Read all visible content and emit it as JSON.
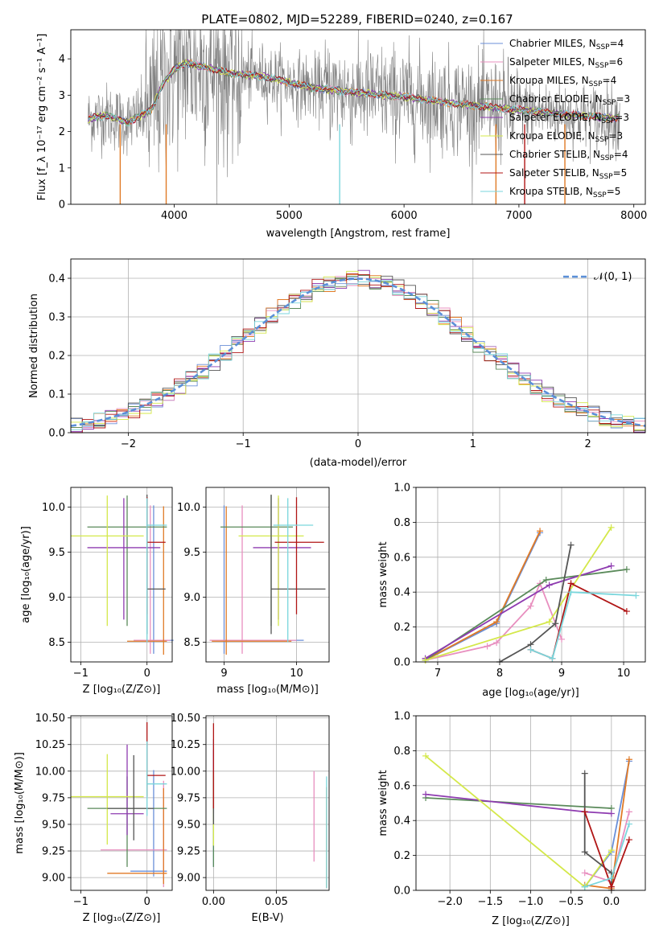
{
  "figure_title": "PLATE=0802, MJD=52289, FIBERID=0240, z=0.167",
  "colors": {
    "chabrier_miles": "#6a8fd8",
    "salpeter_miles": "#e88fbf",
    "kroupa_miles": "#e07a26",
    "chabrier_elodie": "#5a8a5a",
    "salpeter_elodie": "#8e3bb0",
    "kroupa_elodie": "#d4e84a",
    "chabrier_stelib": "#555555",
    "salpeter_stelib": "#b01515",
    "kroupa_stelib": "#7ad6dc",
    "data": "#808080",
    "grid": "#b0b0b0"
  },
  "chart_data": [
    {
      "id": "spectrum",
      "type": "line",
      "xlabel": "wavelength [Angstrom, rest frame]",
      "ylabel": "Flux [f_λ 10⁻¹⁷ erg cm⁻² s⁻¹ A⁻¹]",
      "xlim": [
        3100,
        8100
      ],
      "ylim": [
        0,
        4.8
      ],
      "xticks": [
        "4000",
        "5000",
        "6000",
        "7000",
        "8000"
      ],
      "yticks": [
        "0",
        "1",
        "2",
        "3",
        "4"
      ],
      "grid": false,
      "legend_position": "upper-right",
      "legend": [
        {
          "label": "Chabrier MILES, N",
          "sub": "SSP",
          "value": "=4"
        },
        {
          "label": "Salpeter MILES, N",
          "sub": "SSP",
          "value": "=6"
        },
        {
          "label": "Kroupa MILES, N",
          "sub": "SSP",
          "value": "=4"
        },
        {
          "label": "Chabrier ELODIE, N",
          "sub": "SSP",
          "value": "=3"
        },
        {
          "label": "Salpeter ELODIE, N",
          "sub": "SSP",
          "value": "=3"
        },
        {
          "label": "Kroupa ELODIE, N",
          "sub": "SSP",
          "value": "=3"
        },
        {
          "label": "Chabrier STELIB, N",
          "sub": "SSP",
          "value": "=4"
        },
        {
          "label": "Salpeter STELIB, N",
          "sub": "SSP",
          "value": "=5"
        },
        {
          "label": "Kroupa STELIB, N",
          "sub": "SSP",
          "value": "=5"
        }
      ],
      "model_continuum": {
        "x": [
          3250,
          3400,
          3600,
          3800,
          3900,
          4000,
          4100,
          4300,
          4500,
          4800,
          5000,
          5200,
          5500,
          6000,
          6500,
          7000,
          7500,
          7900
        ],
        "y": [
          2.35,
          2.45,
          2.25,
          2.6,
          3.3,
          3.7,
          3.9,
          3.75,
          3.6,
          3.5,
          3.35,
          3.2,
          3.1,
          2.95,
          2.75,
          2.6,
          2.45,
          2.35
        ]
      }
    },
    {
      "id": "residuals",
      "type": "histogram",
      "xlabel": "(data-model)/error",
      "ylabel": "Normed distribution",
      "xlim": [
        -2.5,
        2.5
      ],
      "ylim": [
        0,
        0.45
      ],
      "xticks": [
        "−2",
        "−1",
        "0",
        "1",
        "2"
      ],
      "yticks": [
        "0.0",
        "0.1",
        "0.2",
        "0.3",
        "0.4"
      ],
      "grid": true,
      "legend_position": "upper-right",
      "legend_label": "𝒩(0, 1)",
      "bin_width": 0.1
    },
    {
      "id": "age_vs_Z",
      "type": "errorbar",
      "xlabel": "Z [log₁₀(Z/Z⊙)]",
      "ylabel": "age  [log₁₀(age/yr)]",
      "xlim": [
        -1.15,
        0.38
      ],
      "ylim": [
        8.28,
        10.22
      ],
      "xticks": [
        "−1",
        "0"
      ],
      "xtick_values": [
        -1,
        0
      ],
      "yticks": [
        "8.5",
        "9.0",
        "9.5",
        "10.0"
      ],
      "ytick_values": [
        8.5,
        9.0,
        9.5,
        10.0
      ],
      "grid": true,
      "points": [
        {
          "model": "chabrier_miles",
          "x": 0.1,
          "xerr": [
            0.3,
            0.3
          ],
          "y": 8.52,
          "yerr": [
            0.15,
            1.5
          ]
        },
        {
          "model": "salpeter_miles",
          "x": 0.05,
          "xerr": [
            0.25,
            0.3
          ],
          "y": 8.52,
          "yerr": [
            0.15,
            1.5
          ]
        },
        {
          "model": "kroupa_miles",
          "x": 0.25,
          "xerr": [
            0.55,
            0.05
          ],
          "y": 8.51,
          "yerr": [
            0.15,
            1.5
          ]
        },
        {
          "model": "chabrier_elodie",
          "x": -0.3,
          "xerr": [
            0.6,
            0.6
          ],
          "y": 9.78,
          "yerr": [
            1.1,
            0.35
          ]
        },
        {
          "model": "salpeter_elodie",
          "x": -0.35,
          "xerr": [
            0.55,
            0.55
          ],
          "y": 9.55,
          "yerr": [
            0.8,
            0.55
          ]
        },
        {
          "model": "kroupa_elodie",
          "x": -0.6,
          "xerr": [
            0.55,
            0.55
          ],
          "y": 9.68,
          "yerr": [
            1.0,
            0.45
          ]
        },
        {
          "model": "chabrier_stelib",
          "x": 0.0,
          "xerr": [
            0.0,
            0.28
          ],
          "y": 9.09,
          "yerr": [
            0.5,
            1.05
          ]
        },
        {
          "model": "salpeter_stelib",
          "x": 0.0,
          "xerr": [
            0.0,
            0.28
          ],
          "y": 9.61,
          "yerr": [
            0.8,
            0.5
          ]
        },
        {
          "model": "kroupa_stelib",
          "x": 0.0,
          "xerr": [
            0.0,
            0.3
          ],
          "y": 9.8,
          "yerr": [
            1.3,
            0.3
          ]
        }
      ]
    },
    {
      "id": "age_vs_mass",
      "type": "errorbar",
      "xlabel": "mass [log₁₀(M/M⊙)]",
      "ylabel": "",
      "xlim": [
        8.75,
        10.45
      ],
      "ylim": [
        8.28,
        10.22
      ],
      "xticks": [
        "9",
        "10"
      ],
      "xtick_values": [
        9,
        10
      ],
      "yticks": [
        "8.5",
        "9.0",
        "9.5",
        "10.0"
      ],
      "ytick_values": [
        8.5,
        9.0,
        9.5,
        10.0
      ],
      "grid": true,
      "points": [
        {
          "model": "chabrier_miles",
          "x": 9.0,
          "xerr": [
            0.05,
            1.1
          ],
          "y": 8.52,
          "yerr": [
            0.15,
            1.5
          ]
        },
        {
          "model": "salpeter_miles",
          "x": 9.25,
          "xerr": [
            0.45,
            0.75
          ],
          "y": 8.52,
          "yerr": [
            0.15,
            1.5
          ]
        },
        {
          "model": "kroupa_miles",
          "x": 9.03,
          "xerr": [
            0.2,
            0.9
          ],
          "y": 8.51,
          "yerr": [
            0.15,
            1.5
          ]
        },
        {
          "model": "chabrier_elodie",
          "x": 9.65,
          "xerr": [
            0.7,
            0.3
          ],
          "y": 9.78,
          "yerr": [
            1.1,
            0.35
          ]
        },
        {
          "model": "salpeter_elodie",
          "x": 9.75,
          "xerr": [
            0.35,
            0.45
          ],
          "y": 9.55,
          "yerr": [
            0.8,
            0.55
          ]
        },
        {
          "model": "kroupa_elodie",
          "x": 9.75,
          "xerr": [
            0.55,
            0.35
          ],
          "y": 9.68,
          "yerr": [
            1.0,
            0.45
          ]
        },
        {
          "model": "chabrier_stelib",
          "x": 9.65,
          "xerr": [
            0.0,
            0.75
          ],
          "y": 9.09,
          "yerr": [
            0.5,
            1.05
          ]
        },
        {
          "model": "salpeter_stelib",
          "x": 10.0,
          "xerr": [
            0.3,
            0.38
          ],
          "y": 9.61,
          "yerr": [
            0.8,
            0.5
          ]
        },
        {
          "model": "kroupa_stelib",
          "x": 9.88,
          "xerr": [
            0.2,
            0.35
          ],
          "y": 9.8,
          "yerr": [
            1.3,
            0.3
          ]
        }
      ]
    },
    {
      "id": "massweight_vs_age",
      "type": "line",
      "xlabel": "age  [log₁₀(age/yr)]",
      "ylabel": "mass weight",
      "xlim": [
        6.65,
        10.35
      ],
      "ylim": [
        0,
        1.0
      ],
      "xticks": [
        "7",
        "8",
        "9",
        "10"
      ],
      "xtick_values": [
        7,
        8,
        9,
        10
      ],
      "yticks": [
        "0.0",
        "0.2",
        "0.4",
        "0.6",
        "0.8",
        "1.0"
      ],
      "ytick_values": [
        0,
        0.2,
        0.4,
        0.6,
        0.8,
        1.0
      ],
      "grid": true,
      "series": [
        {
          "model": "chabrier_miles",
          "x": [
            6.8,
            7.95,
            8.65
          ],
          "y": [
            0.01,
            0.22,
            0.74
          ]
        },
        {
          "model": "salpeter_miles",
          "x": [
            6.8,
            7.8,
            7.95,
            8.5,
            8.65,
            9.0
          ],
          "y": [
            0.01,
            0.09,
            0.11,
            0.32,
            0.45,
            0.13
          ]
        },
        {
          "model": "kroupa_miles",
          "x": [
            6.8,
            7.95,
            8.65
          ],
          "y": [
            0.01,
            0.23,
            0.75
          ]
        },
        {
          "model": "chabrier_elodie",
          "x": [
            6.8,
            8.75,
            10.05
          ],
          "y": [
            0.01,
            0.47,
            0.53
          ]
        },
        {
          "model": "salpeter_elodie",
          "x": [
            6.8,
            8.8,
            9.8
          ],
          "y": [
            0.02,
            0.44,
            0.55
          ]
        },
        {
          "model": "kroupa_elodie",
          "x": [
            6.8,
            8.8,
            9.8
          ],
          "y": [
            0.01,
            0.23,
            0.77
          ]
        },
        {
          "model": "chabrier_stelib",
          "x": [
            8.0,
            8.5,
            8.9,
            9.15
          ],
          "y": [
            0.0,
            0.1,
            0.22,
            0.67
          ]
        },
        {
          "model": "salpeter_stelib",
          "x": [
            8.5,
            8.85,
            9.15,
            10.05
          ],
          "y": [
            0.07,
            0.02,
            0.45,
            0.29
          ]
        },
        {
          "model": "kroupa_stelib",
          "x": [
            8.5,
            8.85,
            9.15,
            10.2
          ],
          "y": [
            0.07,
            0.02,
            0.4,
            0.38
          ]
        }
      ]
    },
    {
      "id": "mass_vs_Z",
      "type": "errorbar",
      "xlabel": "Z [log₁₀(Z/Z⊙)]",
      "ylabel": "mass [log₁₀(M/M⊙)]",
      "xlim": [
        -1.15,
        0.38
      ],
      "ylim": [
        8.88,
        10.52
      ],
      "xticks": [
        "−1",
        "0"
      ],
      "xtick_values": [
        -1,
        0
      ],
      "yticks": [
        "9.00",
        "9.25",
        "9.50",
        "9.75",
        "10.00",
        "10.25",
        "10.50"
      ],
      "ytick_values": [
        9.0,
        9.25,
        9.5,
        9.75,
        10.0,
        10.25,
        10.5
      ],
      "grid": true,
      "points": [
        {
          "model": "chabrier_miles",
          "x": 0.1,
          "xerr": [
            0.35,
            0.2
          ],
          "y": 9.06,
          "yerr": [
            0.05,
            0.95
          ]
        },
        {
          "model": "salpeter_miles",
          "x": 0.25,
          "xerr": [
            0.95,
            0.05
          ],
          "y": 9.26,
          "yerr": [
            0.35,
            0.65
          ]
        },
        {
          "model": "kroupa_miles",
          "x": 0.25,
          "xerr": [
            0.85,
            0.05
          ],
          "y": 9.04,
          "yerr": [
            0.1,
            0.8
          ]
        },
        {
          "model": "chabrier_elodie",
          "x": -0.3,
          "xerr": [
            0.6,
            0.6
          ],
          "y": 9.65,
          "yerr": [
            0.55,
            0.3
          ]
        },
        {
          "model": "salpeter_elodie",
          "x": -0.3,
          "xerr": [
            0.25,
            0.25
          ],
          "y": 9.6,
          "yerr": [
            0.2,
            0.65
          ]
        },
        {
          "model": "kroupa_elodie",
          "x": -0.6,
          "xerr": [
            0.55,
            0.55
          ],
          "y": 9.76,
          "yerr": [
            0.45,
            0.4
          ]
        },
        {
          "model": "chabrier_stelib",
          "x": -0.2,
          "xerr": [
            0.4,
            0.3
          ],
          "y": 9.65,
          "yerr": [
            0.3,
            0.5
          ]
        },
        {
          "model": "salpeter_stelib",
          "x": 0.0,
          "xerr": [
            0.0,
            0.28
          ],
          "y": 9.96,
          "yerr": [
            0.2,
            0.5
          ]
        },
        {
          "model": "kroupa_stelib",
          "x": 0.0,
          "xerr": [
            0.0,
            0.3
          ],
          "y": 9.88,
          "yerr": [
            0.3,
            0.4
          ]
        }
      ]
    },
    {
      "id": "mass_vs_ebv",
      "type": "errorbar",
      "xlabel": "E(B-V)",
      "ylabel": "",
      "xlim": [
        -0.006,
        0.092
      ],
      "ylim": [
        8.88,
        10.52
      ],
      "xticks": [
        "0.00",
        "0.05"
      ],
      "xtick_values": [
        0.0,
        0.05
      ],
      "yticks": [
        "9.00",
        "9.25",
        "9.50",
        "9.75",
        "10.00",
        "10.25",
        "10.50"
      ],
      "ytick_values": [
        9.0,
        9.25,
        9.5,
        9.75,
        10.0,
        10.25,
        10.5
      ],
      "grid": true,
      "points": [
        {
          "model": "chabrier_miles",
          "x": 0.0,
          "y": 9.5,
          "yerr": [
            0.4,
            0.8
          ]
        },
        {
          "model": "salpeter_miles",
          "x": 0.08,
          "y": 9.5,
          "yerr": [
            0.35,
            0.5
          ]
        },
        {
          "model": "kroupa_miles",
          "x": 0.09,
          "y": 9.4,
          "yerr": [
            0.5,
            0.45
          ]
        },
        {
          "model": "chabrier_elodie",
          "x": 0.0,
          "y": 9.65,
          "yerr": [
            0.55,
            0.3
          ]
        },
        {
          "model": "salpeter_elodie",
          "x": 0.0,
          "y": 9.9,
          "yerr": [
            0.3,
            0.3
          ]
        },
        {
          "model": "kroupa_elodie",
          "x": 0.0,
          "y": 9.6,
          "yerr": [
            0.3,
            0.4
          ]
        },
        {
          "model": "chabrier_stelib",
          "x": 0.0,
          "y": 9.7,
          "yerr": [
            0.2,
            0.3
          ]
        },
        {
          "model": "salpeter_stelib",
          "x": 0.0,
          "y": 9.95,
          "yerr": [
            0.3,
            0.5
          ]
        },
        {
          "model": "kroupa_stelib",
          "x": 0.09,
          "y": 9.5,
          "yerr": [
            0.6,
            0.45
          ]
        }
      ]
    },
    {
      "id": "massweight_vs_Z",
      "type": "line",
      "xlabel": "Z [log₁₀(Z/Z⊙)]",
      "ylabel": "mass weight",
      "xlim": [
        -2.42,
        0.42
      ],
      "ylim": [
        0,
        1.0
      ],
      "xticks": [
        "−2.0",
        "−1.5",
        "−1.0",
        "−0.5",
        "0.0"
      ],
      "xtick_values": [
        -2.0,
        -1.5,
        -1.0,
        -0.5,
        0.0
      ],
      "yticks": [
        "0.0",
        "0.2",
        "0.4",
        "0.6",
        "0.8",
        "1.0"
      ],
      "ytick_values": [
        0,
        0.2,
        0.4,
        0.6,
        0.8,
        1.0
      ],
      "grid": true,
      "series": [
        {
          "model": "chabrier_miles",
          "x": [
            -0.33,
            0.0,
            0.22
          ],
          "y": [
            0.02,
            0.22,
            0.74
          ]
        },
        {
          "model": "salpeter_miles",
          "x": [
            -0.33,
            0.0,
            0.22
          ],
          "y": [
            0.1,
            0.05,
            0.45
          ]
        },
        {
          "model": "kroupa_miles",
          "x": [
            -0.33,
            0.0,
            0.22
          ],
          "y": [
            0.03,
            0.01,
            0.75
          ]
        },
        {
          "model": "chabrier_elodie",
          "x": [
            -2.3,
            0.0
          ],
          "y": [
            0.53,
            0.47
          ]
        },
        {
          "model": "salpeter_elodie",
          "x": [
            -2.3,
            -0.33,
            0.0
          ],
          "y": [
            0.55,
            0.45,
            0.44
          ]
        },
        {
          "model": "kroupa_elodie",
          "x": [
            -2.3,
            -0.33,
            0.0
          ],
          "y": [
            0.77,
            0.02,
            0.23
          ]
        },
        {
          "model": "chabrier_stelib",
          "x": [
            -0.33,
            -0.33,
            0.0,
            0.0
          ],
          "y": [
            0.67,
            0.22,
            0.1,
            0.0
          ]
        },
        {
          "model": "salpeter_stelib",
          "x": [
            -0.33,
            0.0,
            0.22
          ],
          "y": [
            0.45,
            0.02,
            0.29
          ]
        },
        {
          "model": "kroupa_stelib",
          "x": [
            -0.33,
            0.0,
            0.22
          ],
          "y": [
            0.02,
            0.07,
            0.38
          ]
        }
      ]
    }
  ]
}
